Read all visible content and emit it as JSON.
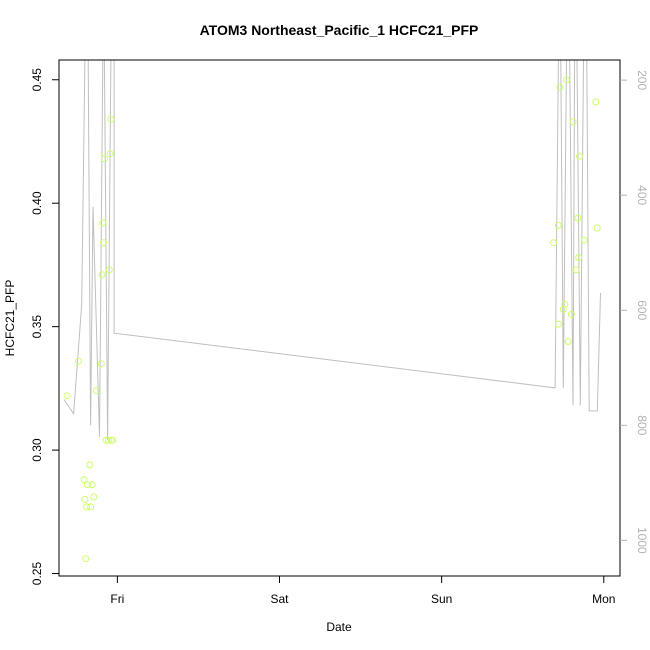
{
  "chart_data": {
    "type": "scatter",
    "title": "ATOM3 Northeast_Pacific_1 HCFC21_PFP",
    "xlabel": "Date",
    "ylabel": "HCFC21_PFP",
    "xlim": [
      -0.36,
      3.1
    ],
    "ylim": [
      0.249,
      0.458
    ],
    "x_ticks": [
      {
        "value": 0,
        "label": "Fri"
      },
      {
        "value": 1,
        "label": "Sat"
      },
      {
        "value": 2,
        "label": "Sun"
      },
      {
        "value": 3,
        "label": "Mon"
      }
    ],
    "y_ticks": [
      {
        "value": 0.25,
        "label": "0.25"
      },
      {
        "value": 0.3,
        "label": "0.30"
      },
      {
        "value": 0.35,
        "label": "0.35"
      },
      {
        "value": 0.4,
        "label": "0.40"
      },
      {
        "value": 0.45,
        "label": "0.45"
      }
    ],
    "y2_axis": {
      "label": "",
      "lim": [
        1062,
        165
      ],
      "color": "#b3b3b3",
      "ticks": [
        {
          "value": 200,
          "label": "200"
        },
        {
          "value": 400,
          "label": "400"
        },
        {
          "value": 600,
          "label": "600"
        },
        {
          "value": 800,
          "label": "800"
        },
        {
          "value": 1000,
          "label": "1000"
        }
      ]
    },
    "grid": false,
    "series": [
      {
        "type": "scatter",
        "axis": "left",
        "color": "#ccff66",
        "points": [
          {
            "x": -0.31,
            "y": 0.322
          },
          {
            "x": -0.24,
            "y": 0.336
          },
          {
            "x": -0.205,
            "y": 0.288
          },
          {
            "x": -0.2,
            "y": 0.28
          },
          {
            "x": -0.195,
            "y": 0.256
          },
          {
            "x": -0.19,
            "y": 0.277
          },
          {
            "x": -0.185,
            "y": 0.286
          },
          {
            "x": -0.17,
            "y": 0.294
          },
          {
            "x": -0.165,
            "y": 0.277
          },
          {
            "x": -0.155,
            "y": 0.286
          },
          {
            "x": -0.145,
            "y": 0.281
          },
          {
            "x": -0.13,
            "y": 0.324
          },
          {
            "x": -0.1,
            "y": 0.335
          },
          {
            "x": -0.095,
            "y": 0.371
          },
          {
            "x": -0.09,
            "y": 0.392
          },
          {
            "x": -0.085,
            "y": 0.384
          },
          {
            "x": -0.08,
            "y": 0.418
          },
          {
            "x": -0.07,
            "y": 0.304
          },
          {
            "x": -0.055,
            "y": 0.304
          },
          {
            "x": -0.05,
            "y": 0.373
          },
          {
            "x": -0.045,
            "y": 0.42
          },
          {
            "x": -0.04,
            "y": 0.434
          },
          {
            "x": -0.035,
            "y": 0.304
          },
          {
            "x": -0.03,
            "y": 0.304
          },
          {
            "x": 2.69,
            "y": 0.384
          },
          {
            "x": 2.72,
            "y": 0.351
          },
          {
            "x": 2.72,
            "y": 0.391
          },
          {
            "x": 2.73,
            "y": 0.447
          },
          {
            "x": 2.75,
            "y": 0.357
          },
          {
            "x": 2.76,
            "y": 0.359
          },
          {
            "x": 2.77,
            "y": 0.45
          },
          {
            "x": 2.78,
            "y": 0.344
          },
          {
            "x": 2.8,
            "y": 0.355
          },
          {
            "x": 2.81,
            "y": 0.433
          },
          {
            "x": 2.83,
            "y": 0.373
          },
          {
            "x": 2.84,
            "y": 0.394
          },
          {
            "x": 2.845,
            "y": 0.378
          },
          {
            "x": 2.85,
            "y": 0.419
          },
          {
            "x": 2.88,
            "y": 0.385
          },
          {
            "x": 2.95,
            "y": 0.441
          },
          {
            "x": 2.96,
            "y": 0.39
          }
        ]
      },
      {
        "type": "line",
        "axis": "right",
        "color": "#bfbfbf",
        "points": [
          {
            "x": -0.33,
            "y": 755
          },
          {
            "x": -0.27,
            "y": 780
          },
          {
            "x": -0.22,
            "y": 590
          },
          {
            "x": -0.2,
            "y": 165
          },
          {
            "x": -0.18,
            "y": 165
          },
          {
            "x": -0.165,
            "y": 800
          },
          {
            "x": -0.15,
            "y": 420
          },
          {
            "x": -0.11,
            "y": 820
          },
          {
            "x": -0.09,
            "y": 165
          },
          {
            "x": -0.08,
            "y": 165
          },
          {
            "x": -0.06,
            "y": 825
          },
          {
            "x": -0.04,
            "y": 165
          },
          {
            "x": -0.02,
            "y": 165
          },
          {
            "x": -0.02,
            "y": 640
          },
          {
            "x": 2.7,
            "y": 735
          },
          {
            "x": 2.72,
            "y": 165
          },
          {
            "x": 2.735,
            "y": 165
          },
          {
            "x": 2.75,
            "y": 735
          },
          {
            "x": 2.77,
            "y": 165
          },
          {
            "x": 2.79,
            "y": 165
          },
          {
            "x": 2.81,
            "y": 765
          },
          {
            "x": 2.82,
            "y": 165
          },
          {
            "x": 2.835,
            "y": 165
          },
          {
            "x": 2.855,
            "y": 765
          },
          {
            "x": 2.875,
            "y": 165
          },
          {
            "x": 2.895,
            "y": 165
          },
          {
            "x": 2.91,
            "y": 775
          },
          {
            "x": 2.96,
            "y": 775
          },
          {
            "x": 2.98,
            "y": 570
          }
        ]
      }
    ]
  }
}
